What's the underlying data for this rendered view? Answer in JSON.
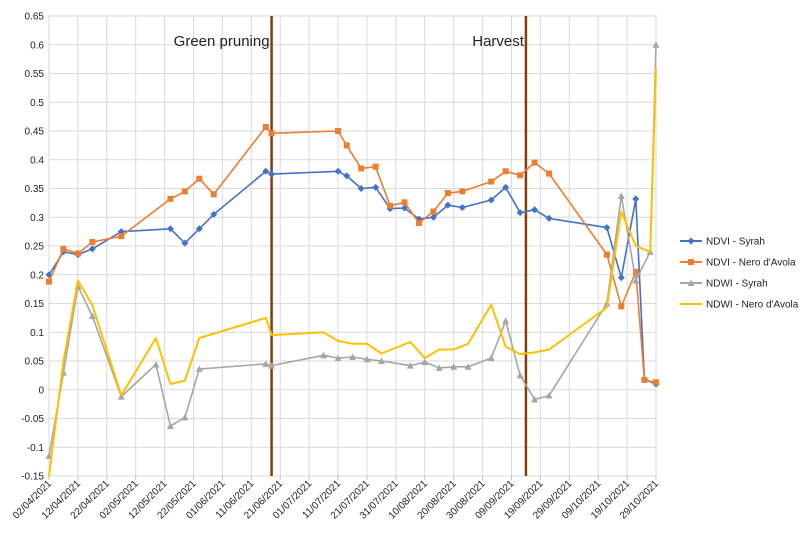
{
  "chart_data": {
    "type": "line",
    "title": "",
    "xlabel": "",
    "ylabel": "",
    "ylim": [
      -0.15,
      0.65
    ],
    "yticks": [
      -0.15,
      -0.1,
      -0.05,
      0,
      0.05,
      0.1,
      0.15,
      0.2,
      0.25,
      0.3,
      0.35,
      0.4,
      0.45,
      0.5,
      0.55,
      0.6,
      0.65
    ],
    "ytick_labels": [
      "-0.15",
      "-0.1",
      "-0.05",
      "0",
      "0.05",
      "0.1",
      "0.15",
      "0.2",
      "0.25",
      "0.3",
      "0.35",
      "0.4",
      "0.45",
      "0.5",
      "0.55",
      "0.6",
      "0.65"
    ],
    "xlim": [
      "2021-04-02",
      "2021-10-29"
    ],
    "xticks": [
      "2021-04-02",
      "2021-04-12",
      "2021-04-22",
      "2021-05-02",
      "2021-05-12",
      "2021-05-22",
      "2021-06-01",
      "2021-06-11",
      "2021-06-21",
      "2021-07-01",
      "2021-07-11",
      "2021-07-21",
      "2021-07-31",
      "2021-08-10",
      "2021-08-20",
      "2021-08-30",
      "2021-09-09",
      "2021-09-19",
      "2021-09-29",
      "2021-10-09",
      "2021-10-19",
      "2021-10-29"
    ],
    "xtick_labels": [
      "02/04/2021",
      "12/04/2021",
      "22/04/2021",
      "02/05/2021",
      "12/05/2021",
      "22/05/2021",
      "01/06/2021",
      "11/06/2021",
      "21/06/2021",
      "01/07/2021",
      "11/07/2021",
      "21/07/2021",
      "31/07/2021",
      "10/08/2021",
      "20/08/2021",
      "30/08/2021",
      "09/09/2021",
      "19/09/2021",
      "29/09/2021",
      "09/10/2021",
      "19/10/2021",
      "29/10/2021"
    ],
    "grid": true,
    "legend": "right",
    "annotations": [
      {
        "label": "Green pruning",
        "x": "2021-06-18"
      },
      {
        "label": "Harvest",
        "x": "2021-09-14"
      }
    ],
    "series": [
      {
        "name": "NDVI - Syrah",
        "color": "#4472C4",
        "marker": "diamond",
        "x": [
          "2021-04-02",
          "2021-04-07",
          "2021-04-12",
          "2021-04-17",
          "2021-04-27",
          "2021-05-14",
          "2021-05-19",
          "2021-05-24",
          "2021-05-29",
          "2021-06-16",
          "2021-06-18",
          "2021-07-11",
          "2021-07-14",
          "2021-07-19",
          "2021-07-24",
          "2021-07-29",
          "2021-08-03",
          "2021-08-08",
          "2021-08-13",
          "2021-08-18",
          "2021-08-23",
          "2021-09-02",
          "2021-09-07",
          "2021-09-12",
          "2021-09-17",
          "2021-09-22",
          "2021-10-12",
          "2021-10-17",
          "2021-10-22",
          "2021-10-25",
          "2021-10-29"
        ],
        "y": [
          0.2,
          0.24,
          0.235,
          0.245,
          0.275,
          0.28,
          0.255,
          0.28,
          0.305,
          0.38,
          0.375,
          0.38,
          0.372,
          0.35,
          0.352,
          0.315,
          0.316,
          0.297,
          0.3,
          0.321,
          0.317,
          0.33,
          0.352,
          0.308,
          0.313,
          0.298,
          0.282,
          0.195,
          0.332,
          0.018,
          0.01
        ]
      },
      {
        "name": "NDVI - Nero d'Avola",
        "color": "#ED7D31",
        "marker": "square",
        "x": [
          "2021-04-02",
          "2021-04-07",
          "2021-04-12",
          "2021-04-17",
          "2021-04-27",
          "2021-05-14",
          "2021-05-19",
          "2021-05-24",
          "2021-05-29",
          "2021-06-16",
          "2021-06-18",
          "2021-07-11",
          "2021-07-14",
          "2021-07-19",
          "2021-07-24",
          "2021-07-29",
          "2021-08-03",
          "2021-08-08",
          "2021-08-13",
          "2021-08-18",
          "2021-08-23",
          "2021-09-02",
          "2021-09-07",
          "2021-09-12",
          "2021-09-17",
          "2021-09-22",
          "2021-10-12",
          "2021-10-17",
          "2021-10-22",
          "2021-10-25",
          "2021-10-29"
        ],
        "y": [
          0.188,
          0.245,
          0.237,
          0.257,
          0.267,
          0.332,
          0.345,
          0.367,
          0.34,
          0.457,
          0.446,
          0.45,
          0.425,
          0.385,
          0.388,
          0.32,
          0.326,
          0.29,
          0.31,
          0.342,
          0.345,
          0.362,
          0.38,
          0.373,
          0.395,
          0.376,
          0.235,
          0.145,
          0.205,
          0.017,
          0.013
        ]
      },
      {
        "name": "NDWI - Syrah",
        "color": "#A5A5A5",
        "marker": "triangle",
        "x": [
          "2021-04-02",
          "2021-04-07",
          "2021-04-12",
          "2021-04-17",
          "2021-04-27",
          "2021-05-09",
          "2021-05-14",
          "2021-05-19",
          "2021-05-24",
          "2021-06-16",
          "2021-06-18",
          "2021-07-06",
          "2021-07-11",
          "2021-07-16",
          "2021-07-21",
          "2021-07-26",
          "2021-08-05",
          "2021-08-10",
          "2021-08-15",
          "2021-08-20",
          "2021-08-25",
          "2021-09-02",
          "2021-09-07",
          "2021-09-12",
          "2021-09-17",
          "2021-09-22",
          "2021-10-12",
          "2021-10-17",
          "2021-10-22",
          "2021-10-27",
          "2021-10-29"
        ],
        "y": [
          -0.115,
          0.03,
          0.18,
          0.128,
          -0.012,
          0.044,
          -0.063,
          -0.048,
          0.036,
          0.045,
          0.042,
          0.06,
          0.055,
          0.057,
          0.053,
          0.05,
          0.042,
          0.048,
          0.038,
          0.04,
          0.04,
          0.055,
          0.12,
          0.025,
          -0.017,
          -0.01,
          0.15,
          0.337,
          0.19,
          0.24,
          0.6
        ]
      },
      {
        "name": "NDWI - Nero d'Avola",
        "color": "#FFC000",
        "marker": "none",
        "x": [
          "2021-04-02",
          "2021-04-07",
          "2021-04-12",
          "2021-04-17",
          "2021-04-27",
          "2021-05-09",
          "2021-05-14",
          "2021-05-19",
          "2021-05-24",
          "2021-06-16",
          "2021-06-18",
          "2021-07-06",
          "2021-07-11",
          "2021-07-16",
          "2021-07-21",
          "2021-07-26",
          "2021-08-05",
          "2021-08-10",
          "2021-08-15",
          "2021-08-20",
          "2021-08-25",
          "2021-09-02",
          "2021-09-07",
          "2021-09-12",
          "2021-09-17",
          "2021-09-22",
          "2021-10-12",
          "2021-10-17",
          "2021-10-22",
          "2021-10-27",
          "2021-10-29"
        ],
        "y": [
          -0.15,
          0.05,
          0.19,
          0.147,
          -0.01,
          0.09,
          0.01,
          0.016,
          0.09,
          0.125,
          0.095,
          0.1,
          0.085,
          0.08,
          0.08,
          0.063,
          0.083,
          0.055,
          0.07,
          0.07,
          0.08,
          0.148,
          0.075,
          0.062,
          0.065,
          0.07,
          0.143,
          0.31,
          0.25,
          0.24,
          0.56
        ]
      }
    ]
  }
}
